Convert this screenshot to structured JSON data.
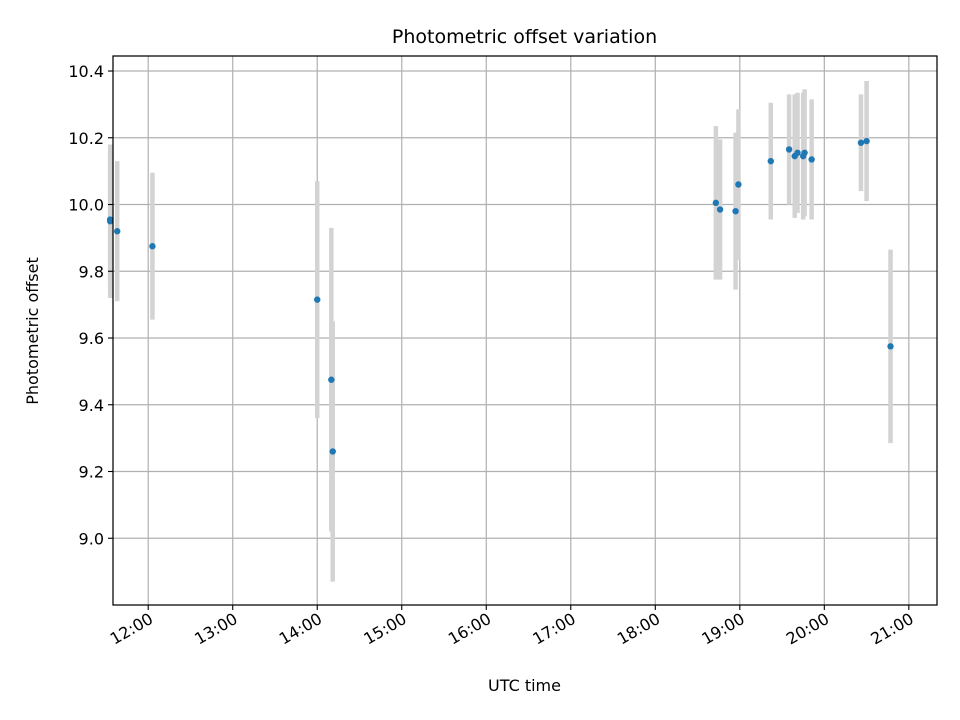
{
  "chart_data": {
    "type": "scatter",
    "title": "Photometric offset variation",
    "xlabel": "UTC time",
    "ylabel": "Photometric offset",
    "x_axis": "time",
    "xlim": [
      "11:35",
      "21:20"
    ],
    "ylim": [
      8.8,
      10.445
    ],
    "grid": true,
    "colors": {
      "point": "#1f77b4",
      "errorbar": "#d3d3d3",
      "grid": "#b0b0b0"
    },
    "x_ticks": [
      "12:00",
      "13:00",
      "14:00",
      "15:00",
      "16:00",
      "17:00",
      "18:00",
      "19:00",
      "20:00",
      "21:00"
    ],
    "y_ticks": [
      9.0,
      9.2,
      9.4,
      9.6,
      9.8,
      10.0,
      10.2,
      10.4
    ],
    "y_tick_labels": [
      "9.0",
      "9.2",
      "9.4",
      "9.6",
      "9.8",
      "10.0",
      "10.2",
      "10.4"
    ],
    "points": [
      {
        "x": "11:33",
        "y": 9.95,
        "err": 0.23
      },
      {
        "x": "11:33",
        "y": 9.955,
        "err": 0.2
      },
      {
        "x": "11:38",
        "y": 9.92,
        "err": 0.21
      },
      {
        "x": "12:03",
        "y": 9.875,
        "err": 0.22
      },
      {
        "x": "14:00",
        "y": 9.715,
        "err": 0.355
      },
      {
        "x": "14:10",
        "y": 9.475,
        "err": 0.455
      },
      {
        "x": "14:11",
        "y": 9.26,
        "err": 0.39
      },
      {
        "x": "18:43",
        "y": 10.005,
        "err": 0.23
      },
      {
        "x": "18:46",
        "y": 9.985,
        "err": 0.21
      },
      {
        "x": "18:57",
        "y": 9.98,
        "err": 0.235
      },
      {
        "x": "18:59",
        "y": 10.06,
        "err": 0.225
      },
      {
        "x": "19:22",
        "y": 10.13,
        "err": 0.175
      },
      {
        "x": "19:35",
        "y": 10.165,
        "err": 0.165
      },
      {
        "x": "19:39",
        "y": 10.145,
        "err": 0.185
      },
      {
        "x": "19:41",
        "y": 10.155,
        "err": 0.18
      },
      {
        "x": "19:45",
        "y": 10.145,
        "err": 0.19
      },
      {
        "x": "19:46",
        "y": 10.155,
        "err": 0.19
      },
      {
        "x": "19:51",
        "y": 10.135,
        "err": 0.18
      },
      {
        "x": "20:26",
        "y": 10.185,
        "err": 0.145
      },
      {
        "x": "20:30",
        "y": 10.19,
        "err": 0.18
      },
      {
        "x": "20:47",
        "y": 9.575,
        "err": 0.29
      }
    ]
  }
}
